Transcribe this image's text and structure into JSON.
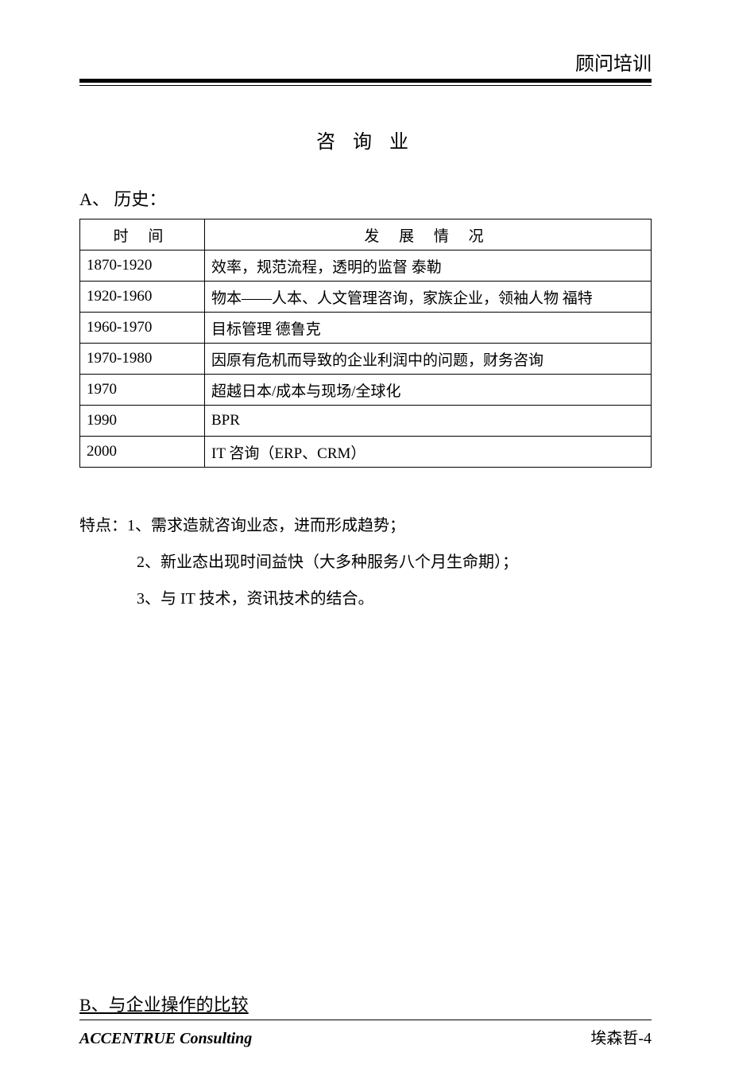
{
  "header": {
    "right_title": "顾问培训"
  },
  "title": "咨 询 业",
  "section_a": {
    "heading": "A、  历史：",
    "table": {
      "columns": [
        "时  间",
        "发   展   情   况"
      ],
      "rows": [
        [
          "1870-1920",
          "效率，规范流程，透明的监督  泰勒"
        ],
        [
          "1920-1960",
          "物本——人本、人文管理咨询，家族企业，领袖人物  福特"
        ],
        [
          "1960-1970",
          "目标管理  德鲁克"
        ],
        [
          "1970-1980",
          "因原有危机而导致的企业利润中的问题，财务咨询"
        ],
        [
          "1970",
          "超越日本/成本与现场/全球化"
        ],
        [
          "1990",
          "BPR"
        ],
        [
          "2000",
          "IT 咨询（ERP、CRM）"
        ]
      ]
    }
  },
  "features": {
    "line1": "特点：1、需求造就咨询业态，进而形成趋势；",
    "line2": "2、新业态出现时间益快（大多种服务八个月生命期）；",
    "line3": "3、与 IT 技术，资讯技术的结合。"
  },
  "section_b": {
    "heading": "B、与企业操作的比较"
  },
  "footer": {
    "left": "ACCENTRUE Consulting",
    "right": "埃森哲-4"
  }
}
